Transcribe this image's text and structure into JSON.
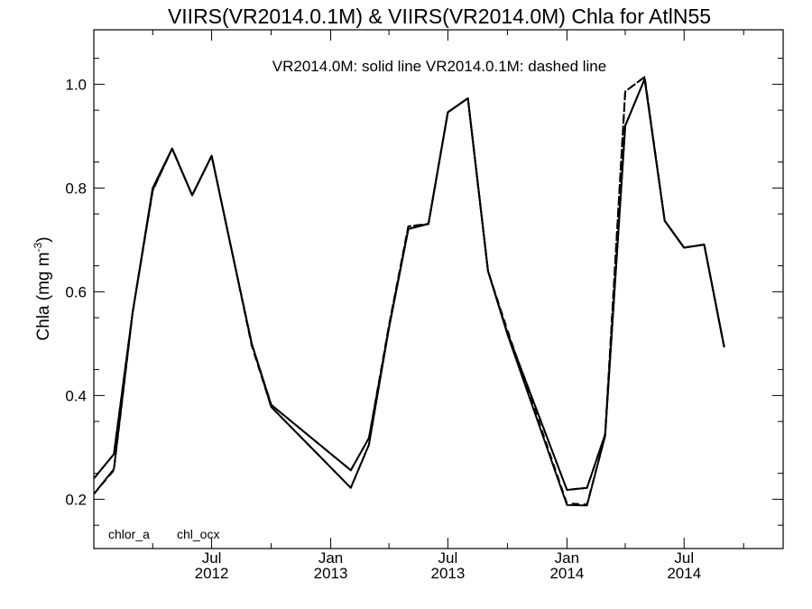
{
  "chart_data": {
    "type": "line",
    "title": "VIIRS(VR2014.0.1M) & VIIRS(VR2014.0M)  Chla for AtlN55",
    "ylabel": "Chla (mg m",
    "ylabel_exponent": "-3",
    "ylabel_close": ")",
    "annotation": "VR2014.0M: solid line   VR2014.0.1M: dashed line",
    "bottom_labels": [
      "chlor_a",
      "chl_ocx"
    ],
    "ylim": [
      0.105,
      1.105
    ],
    "y_ticks": [
      0.2,
      0.4,
      0.6,
      0.8,
      1.0
    ],
    "y_tick_labels": [
      "0.2",
      "0.4",
      "0.6",
      "0.8",
      "1.0"
    ],
    "xlim": [
      "2012-01-01",
      "2014-12-01"
    ],
    "x_ticks": [
      {
        "date": "2012-07-01",
        "month": "Jul",
        "year": "2012"
      },
      {
        "date": "2013-01-01",
        "month": "Jan",
        "year": "2013"
      },
      {
        "date": "2013-07-01",
        "month": "Jul",
        "year": "2013"
      },
      {
        "date": "2014-01-01",
        "month": "Jan",
        "year": "2014"
      },
      {
        "date": "2014-07-01",
        "month": "Jul",
        "year": "2014"
      }
    ],
    "x_minor_ticks": [
      "2012-04-01",
      "2012-10-01",
      "2013-04-01",
      "2013-10-01",
      "2014-04-01",
      "2014-10-01"
    ],
    "grid": false,
    "series": [
      {
        "name": "VR2014.0M: solid line",
        "style": "solid",
        "color": "#000000",
        "lines": [
          {
            "label": "chlor_a",
            "points": [
              [
                "2012-01-01",
                0.24
              ],
              [
                "2012-02-01",
                0.287
              ],
              [
                "2012-03-01",
                0.56
              ],
              [
                "2012-04-01",
                0.8
              ],
              [
                "2012-05-01",
                0.876
              ],
              [
                "2012-06-01",
                0.786
              ],
              [
                "2012-07-01",
                0.862
              ],
              [
                "2012-08-01",
                0.68
              ],
              [
                "2012-09-01",
                0.5
              ],
              [
                "2012-10-01",
                0.382
              ],
              [
                "2013-02-01",
                0.256
              ],
              [
                "2013-03-01",
                0.318
              ],
              [
                "2013-04-01",
                0.53
              ],
              [
                "2013-05-01",
                0.721
              ],
              [
                "2013-06-01",
                0.731
              ],
              [
                "2013-07-01",
                0.946
              ],
              [
                "2013-08-01",
                0.973
              ],
              [
                "2013-09-01",
                0.64
              ],
              [
                "2013-10-01",
                0.521
              ],
              [
                "2014-01-01",
                0.218
              ],
              [
                "2014-02-01",
                0.222
              ],
              [
                "2014-03-01",
                0.325
              ],
              [
                "2014-04-01",
                0.92
              ],
              [
                "2014-05-01",
                1.01
              ],
              [
                "2014-06-01",
                0.737
              ],
              [
                "2014-07-01",
                0.685
              ],
              [
                "2014-08-01",
                0.691
              ],
              [
                "2014-09-01",
                0.493
              ]
            ]
          },
          {
            "label": "chl_ocx",
            "points": [
              [
                "2012-01-01",
                0.21
              ],
              [
                "2012-02-01",
                0.258
              ],
              [
                "2012-03-01",
                0.56
              ],
              [
                "2012-04-01",
                0.8
              ],
              [
                "2012-05-01",
                0.876
              ],
              [
                "2012-06-01",
                0.786
              ],
              [
                "2012-07-01",
                0.862
              ],
              [
                "2012-08-01",
                0.68
              ],
              [
                "2012-09-01",
                0.5
              ],
              [
                "2012-10-01",
                0.378
              ],
              [
                "2013-02-01",
                0.222
              ],
              [
                "2013-03-01",
                0.305
              ],
              [
                "2013-04-01",
                0.53
              ],
              [
                "2013-05-01",
                0.721
              ],
              [
                "2013-06-01",
                0.731
              ],
              [
                "2013-07-01",
                0.946
              ],
              [
                "2013-08-01",
                0.973
              ],
              [
                "2013-09-01",
                0.64
              ],
              [
                "2013-10-01",
                0.518
              ],
              [
                "2014-01-01",
                0.189
              ],
              [
                "2014-02-01",
                0.188
              ],
              [
                "2014-03-01",
                0.322
              ],
              [
                "2014-04-01",
                0.92
              ],
              [
                "2014-05-01",
                1.01
              ],
              [
                "2014-06-01",
                0.737
              ],
              [
                "2014-07-01",
                0.685
              ],
              [
                "2014-08-01",
                0.691
              ],
              [
                "2014-09-01",
                0.493
              ]
            ]
          }
        ]
      },
      {
        "name": "VR2014.0.1M: dashed line",
        "style": "dashed",
        "color": "#000000",
        "lines": [
          {
            "label": "chlor_a",
            "points": [
              [
                "2012-01-01",
                0.24
              ],
              [
                "2012-02-01",
                0.287
              ],
              [
                "2012-03-01",
                0.56
              ],
              [
                "2012-04-01",
                0.795
              ],
              [
                "2012-05-01",
                0.876
              ],
              [
                "2012-06-01",
                0.786
              ],
              [
                "2012-07-01",
                0.862
              ],
              [
                "2012-08-01",
                0.68
              ],
              [
                "2012-09-01",
                0.5
              ],
              [
                "2012-10-01",
                0.382
              ],
              [
                "2013-02-01",
                0.256
              ],
              [
                "2013-03-01",
                0.318
              ],
              [
                "2013-04-01",
                0.535
              ],
              [
                "2013-05-01",
                0.726
              ],
              [
                "2013-06-01",
                0.731
              ],
              [
                "2013-07-01",
                0.946
              ],
              [
                "2013-08-01",
                0.973
              ],
              [
                "2013-09-01",
                0.64
              ],
              [
                "2013-10-01",
                0.521
              ],
              [
                "2014-01-01",
                0.218
              ],
              [
                "2014-02-01",
                0.222
              ],
              [
                "2014-03-01",
                0.325
              ],
              [
                "2014-04-01",
                0.986
              ],
              [
                "2014-05-01",
                1.014
              ],
              [
                "2014-06-01",
                0.737
              ],
              [
                "2014-07-01",
                0.685
              ],
              [
                "2014-08-01",
                0.691
              ],
              [
                "2014-09-01",
                0.493
              ]
            ]
          },
          {
            "label": "chl_ocx",
            "points": [
              [
                "2012-01-01",
                0.21
              ],
              [
                "2012-02-01",
                0.256
              ],
              [
                "2012-03-01",
                0.56
              ],
              [
                "2012-04-01",
                0.795
              ],
              [
                "2012-05-01",
                0.876
              ],
              [
                "2012-06-01",
                0.786
              ],
              [
                "2012-07-01",
                0.862
              ],
              [
                "2012-08-01",
                0.68
              ],
              [
                "2012-09-01",
                0.496
              ],
              [
                "2012-10-01",
                0.378
              ],
              [
                "2013-02-01",
                0.222
              ],
              [
                "2013-03-01",
                0.305
              ],
              [
                "2013-04-01",
                0.535
              ],
              [
                "2013-05-01",
                0.726
              ],
              [
                "2013-06-01",
                0.731
              ],
              [
                "2013-07-01",
                0.946
              ],
              [
                "2013-08-01",
                0.973
              ],
              [
                "2013-09-01",
                0.64
              ],
              [
                "2013-10-01",
                0.526
              ],
              [
                "2014-01-01",
                0.192
              ],
              [
                "2014-02-01",
                0.19
              ],
              [
                "2014-03-01",
                0.322
              ],
              [
                "2014-04-01",
                0.986
              ],
              [
                "2014-05-01",
                1.014
              ],
              [
                "2014-06-01",
                0.737
              ],
              [
                "2014-07-01",
                0.685
              ],
              [
                "2014-08-01",
                0.691
              ],
              [
                "2014-09-01",
                0.493
              ]
            ]
          }
        ]
      }
    ]
  }
}
